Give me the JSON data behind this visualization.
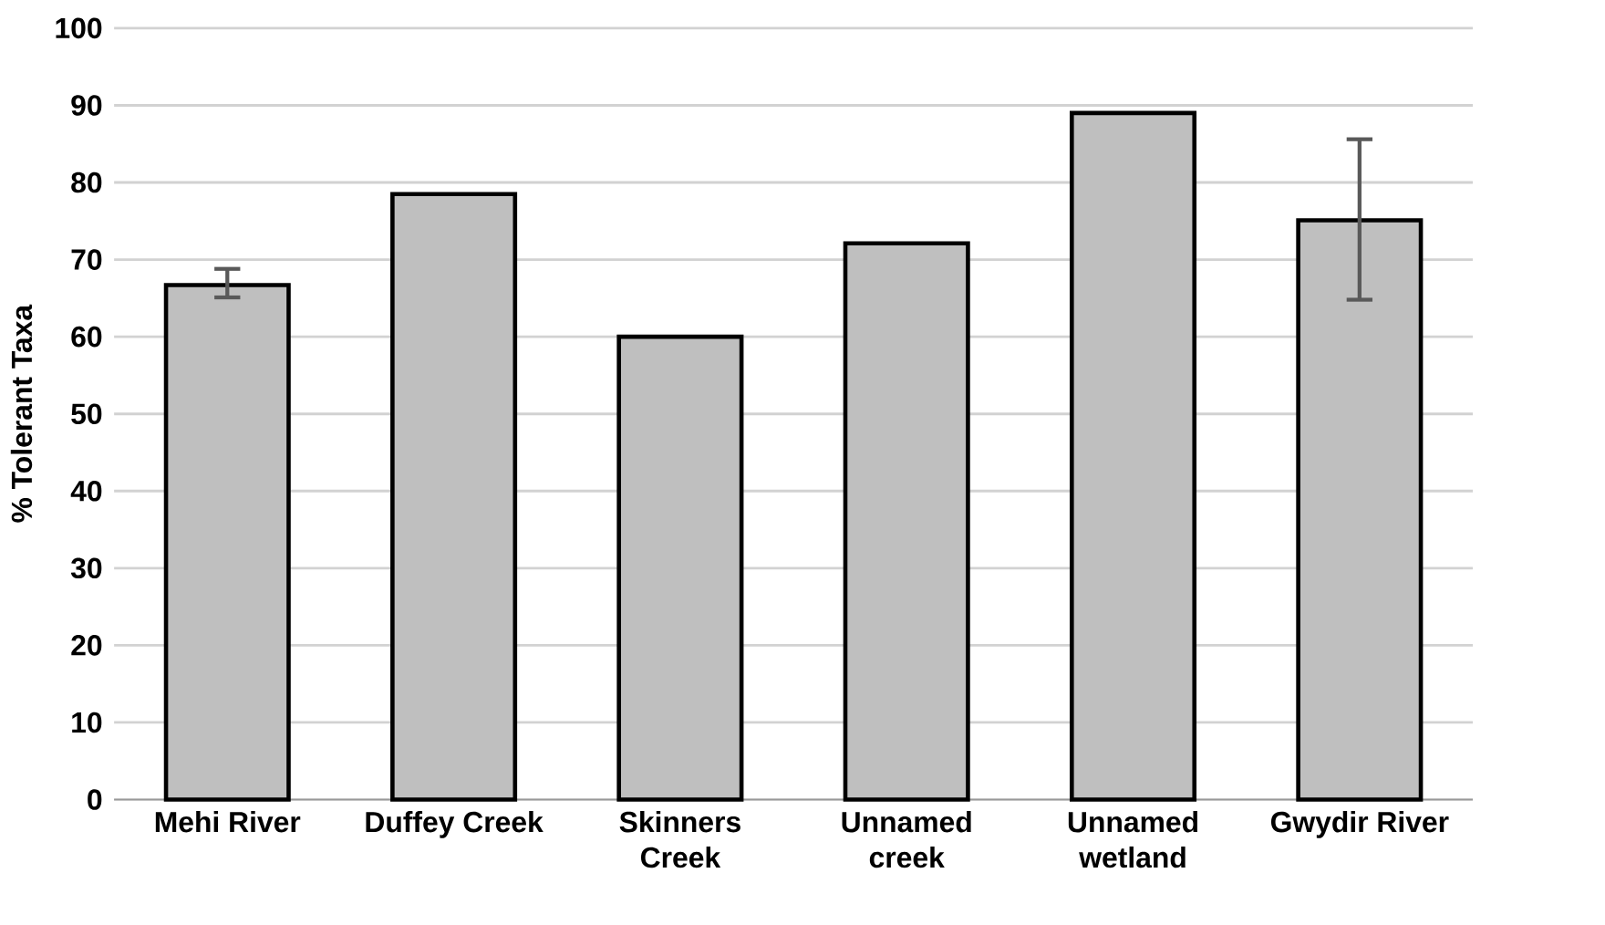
{
  "chart_data": {
    "type": "bar",
    "ylabel": "% Tolerant Taxa",
    "categories": [
      "Mehi River",
      "Duffey Creek",
      "Skinners\nCreek",
      "Unnamed\ncreek",
      "Unnamed\nwetland",
      "Gwydir River"
    ],
    "values": [
      66.7,
      78.5,
      60,
      72.1,
      89,
      75.1
    ],
    "errors": [
      [
        65.1,
        68.8
      ],
      null,
      null,
      null,
      null,
      [
        64.8,
        85.6
      ]
    ],
    "color": "#bfbfbf",
    "ylim": [
      0,
      100
    ],
    "yticks": [
      0,
      10,
      20,
      30,
      40,
      50,
      60,
      70,
      80,
      90,
      100
    ],
    "grid": "y"
  }
}
